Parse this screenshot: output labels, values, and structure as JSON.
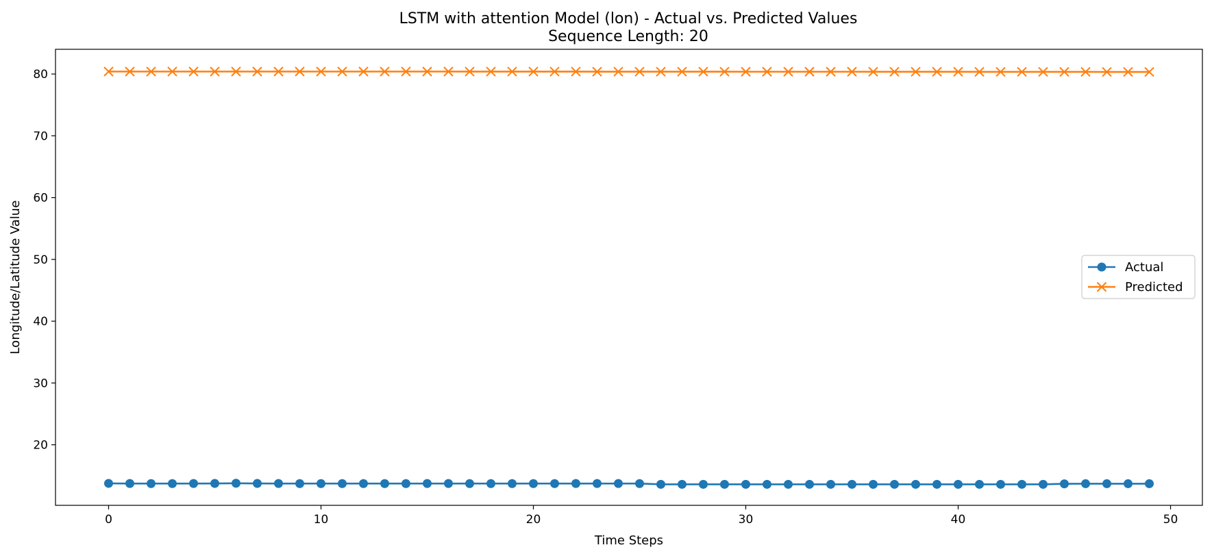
{
  "chart_data": {
    "type": "line",
    "title": "LSTM with attention Model (lon) - Actual vs. Predicted Values",
    "subtitle": "Sequence Length: 20",
    "xlabel": "Time Steps",
    "ylabel": "Longitude/Latitude Value",
    "xlim": [
      -2.5,
      51.5
    ],
    "ylim": [
      10.2,
      84.0
    ],
    "x_ticks": [
      0,
      10,
      20,
      30,
      40,
      50
    ],
    "y_ticks": [
      20,
      30,
      40,
      50,
      60,
      70,
      80
    ],
    "grid": false,
    "legend_position": "center-right",
    "x": [
      0,
      1,
      2,
      3,
      4,
      5,
      6,
      7,
      8,
      9,
      10,
      11,
      12,
      13,
      14,
      15,
      16,
      17,
      18,
      19,
      20,
      21,
      22,
      23,
      24,
      25,
      26,
      27,
      28,
      29,
      30,
      31,
      32,
      33,
      34,
      35,
      36,
      37,
      38,
      39,
      40,
      41,
      42,
      43,
      44,
      45,
      46,
      47,
      48,
      49
    ],
    "series": [
      {
        "name": "Actual",
        "color": "#1f77b4",
        "marker": "circle",
        "values": [
          13.75,
          13.73,
          13.72,
          13.72,
          13.73,
          13.74,
          13.77,
          13.74,
          13.73,
          13.72,
          13.72,
          13.72,
          13.72,
          13.72,
          13.72,
          13.73,
          13.73,
          13.72,
          13.72,
          13.72,
          13.72,
          13.72,
          13.73,
          13.73,
          13.73,
          13.72,
          13.6,
          13.6,
          13.6,
          13.6,
          13.6,
          13.6,
          13.6,
          13.6,
          13.6,
          13.6,
          13.6,
          13.6,
          13.6,
          13.6,
          13.6,
          13.6,
          13.6,
          13.6,
          13.6,
          13.68,
          13.7,
          13.7,
          13.7,
          13.7
        ]
      },
      {
        "name": "Predicted",
        "color": "#ff7f0e",
        "marker": "x",
        "values": [
          80.4,
          80.4,
          80.4,
          80.4,
          80.4,
          80.4,
          80.4,
          80.4,
          80.4,
          80.4,
          80.4,
          80.4,
          80.4,
          80.4,
          80.4,
          80.4,
          80.4,
          80.39,
          80.39,
          80.39,
          80.39,
          80.39,
          80.39,
          80.38,
          80.38,
          80.38,
          80.38,
          80.38,
          80.38,
          80.38,
          80.37,
          80.37,
          80.37,
          80.37,
          80.37,
          80.37,
          80.36,
          80.36,
          80.36,
          80.36,
          80.36,
          80.35,
          80.35,
          80.35,
          80.35,
          80.35,
          80.35,
          80.34,
          80.34,
          80.34
        ]
      }
    ]
  }
}
